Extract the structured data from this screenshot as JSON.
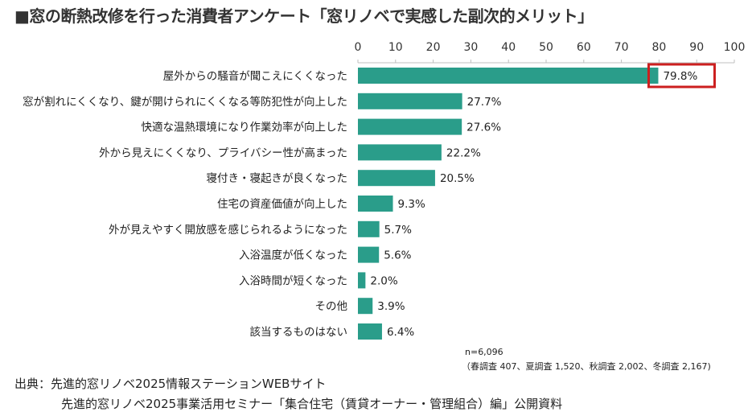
{
  "title": "■窓の断熱改修を行った消費者アンケート「窓リノベで実感した副次的メリット」",
  "chart_data": {
    "type": "bar",
    "orientation": "horizontal",
    "title": "窓リノベで実感した副次的メリット",
    "categories": [
      "屋外からの騒音が聞こえにくくなった",
      "窓が割れにくくなり、鍵が開けられにくくなる等防犯性が向上した",
      "快適な温熱環境になり作業効率が向上した",
      "外から見えにくくなり、プライバシー性が高まった",
      "寝付き・寝起きが良くなった",
      "住宅の資産価値が向上した",
      "外が見えやすく開放感を感じられるようになった",
      "入浴温度が低くなった",
      "入浴時間が短くなった",
      "その他",
      "該当するものはない"
    ],
    "values": [
      79.8,
      27.7,
      27.6,
      22.2,
      20.5,
      9.3,
      5.7,
      5.6,
      2.0,
      3.9,
      6.4
    ],
    "value_labels": [
      "79.8%",
      "27.7%",
      "27.6%",
      "22.2%",
      "20.5%",
      "9.3%",
      "5.7%",
      "5.6%",
      "2.0%",
      "3.9%",
      "6.4%"
    ],
    "xlim": [
      0,
      100
    ],
    "xticks": [
      0,
      10,
      20,
      30,
      40,
      50,
      60,
      70,
      80,
      90,
      100
    ],
    "bar_color": "#2a9d8a",
    "highlight_index": 0,
    "highlight_color": "#cc1f1f",
    "grid": false
  },
  "sample_note": "n=6,096",
  "breakdown_note": "（春調査 407、夏調査 1,520、秋調査 2,002、冬調査 2,167)",
  "source_line1": "出典：先進的窓リノベ2025情報ステーションWEBサイト",
  "source_line2": "先進的窓リノベ2025事業活用セミナー「集合住宅（賃貸オーナー・管理組合）編」公開資料"
}
